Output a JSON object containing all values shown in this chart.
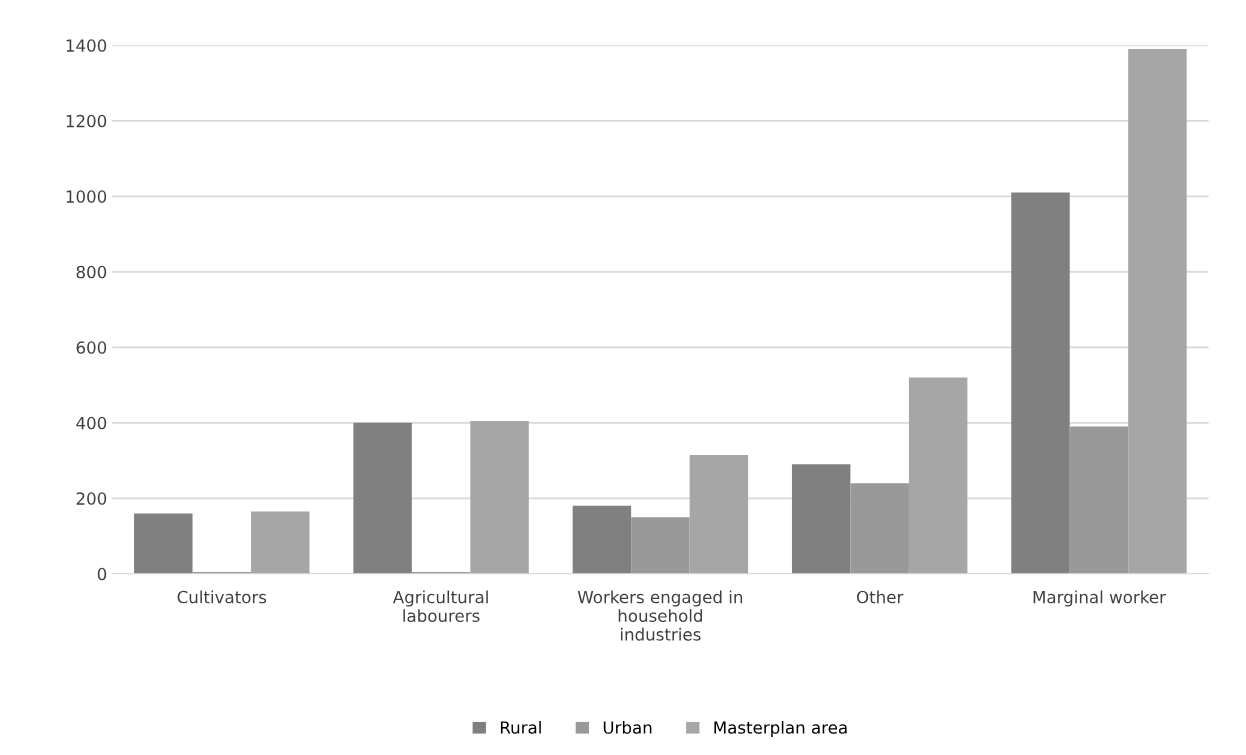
{
  "chart_data": {
    "type": "bar",
    "categories": [
      "Cultivators",
      "Agricultural\nlabourers",
      "Workers engaged in\nhousehold\nindustries",
      "Other",
      "Marginal worker"
    ],
    "series": [
      {
        "name": "Rural",
        "color": "#808080",
        "values": [
          160,
          400,
          180,
          290,
          1010
        ]
      },
      {
        "name": "Urban",
        "color": "#999999",
        "values": [
          5,
          5,
          150,
          240,
          390
        ]
      },
      {
        "name": "Masterplan area",
        "color": "#a6a6a6",
        "values": [
          165,
          405,
          315,
          520,
          1390
        ]
      }
    ],
    "ylim": [
      0,
      1400
    ],
    "yticks": [
      0,
      200,
      400,
      600,
      800,
      1000,
      1200,
      1400
    ],
    "grid": "y",
    "legend": "bottom"
  }
}
